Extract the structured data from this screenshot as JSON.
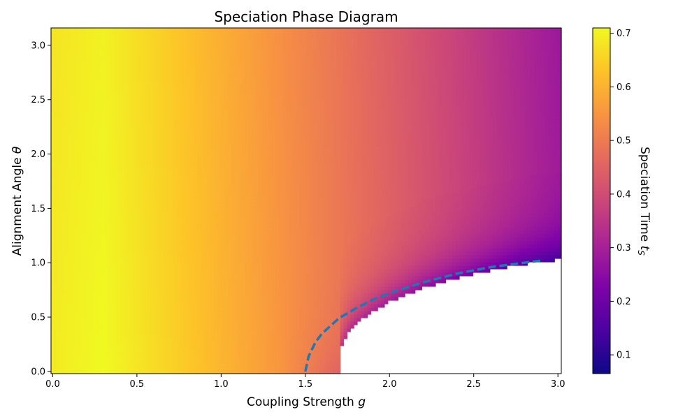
{
  "chart_data": {
    "type": "heatmap",
    "title": "Speciation Phase Diagram",
    "xlabel": "Coupling Strength g",
    "ylabel": "Alignment Angle θ",
    "colorbar_label": "Speciation Time t_S",
    "colormap": "plasma",
    "xlim": [
      -0.01,
      3.02
    ],
    "ylim": [
      -0.02,
      3.16
    ],
    "x_ticks": [
      "0.0",
      "0.5",
      "1.0",
      "1.5",
      "2.0",
      "2.5",
      "3.0"
    ],
    "x_tick_values": [
      0.0,
      0.5,
      1.0,
      1.5,
      2.0,
      2.5,
      3.0
    ],
    "y_ticks": [
      "0.0",
      "0.5",
      "1.0",
      "1.5",
      "2.0",
      "2.5",
      "3.0"
    ],
    "y_tick_values": [
      0.0,
      0.5,
      1.0,
      1.5,
      2.0,
      2.5,
      3.0
    ],
    "colorbar_range": [
      0.065,
      0.71
    ],
    "colorbar_ticks": [
      "0.1",
      "0.2",
      "0.3",
      "0.4",
      "0.5",
      "0.6",
      "0.7"
    ],
    "colorbar_tick_values": [
      0.1,
      0.2,
      0.3,
      0.4,
      0.5,
      0.6,
      0.7
    ],
    "grid": false,
    "regions": {
      "undefined_region": "white area below boundary for g > 1.71",
      "boundary_points": [
        [
          1.71,
          0.0
        ],
        [
          1.71,
          0.2
        ],
        [
          1.75,
          0.35
        ],
        [
          1.8,
          0.44
        ],
        [
          1.9,
          0.55
        ],
        [
          2.0,
          0.64
        ],
        [
          2.2,
          0.77
        ],
        [
          2.4,
          0.86
        ],
        [
          2.6,
          0.93
        ],
        [
          2.8,
          0.99
        ],
        [
          3.02,
          1.03
        ]
      ]
    },
    "series": [
      {
        "type": "dashed-curve",
        "color": "#1f77b4",
        "x": [
          1.5,
          1.52,
          1.56,
          1.6,
          1.7,
          1.8,
          1.9,
          2.0,
          2.2,
          2.4,
          2.6,
          2.8,
          2.9
        ],
        "y": [
          0.0,
          0.14,
          0.27,
          0.35,
          0.49,
          0.58,
          0.66,
          0.72,
          0.82,
          0.9,
          0.96,
          1.0,
          1.02
        ]
      }
    ]
  }
}
